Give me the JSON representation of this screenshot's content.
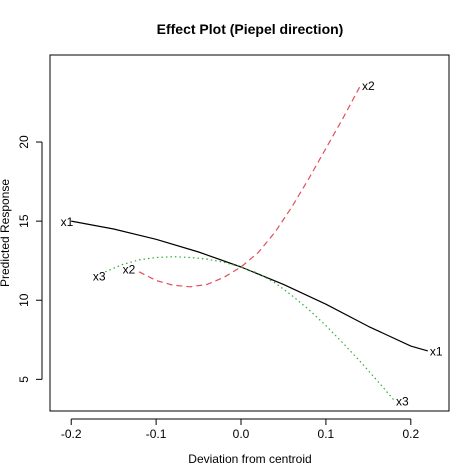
{
  "chart_data": {
    "type": "line",
    "title": "Effect Plot (Piepel direction)",
    "xlabel": "Deviation from centroid",
    "ylabel": "Predicted Response",
    "xlim": [
      -0.225,
      0.245
    ],
    "ylim": [
      3.0,
      25.5
    ],
    "xticks": [
      -0.2,
      -0.1,
      0.0,
      0.1,
      0.2
    ],
    "xtick_labels": [
      "-0.2",
      "-0.1",
      "0.0",
      "0.1",
      "0.2"
    ],
    "yticks": [
      5,
      10,
      15,
      20
    ],
    "ytick_labels": [
      "5",
      "10",
      "15",
      "20"
    ],
    "grid": false,
    "legend": "none",
    "series": [
      {
        "name": "x1",
        "color": "#000000",
        "dash": "solid",
        "x": [
          -0.2,
          -0.15,
          -0.1,
          -0.05,
          0.0,
          0.05,
          0.1,
          0.15,
          0.2,
          0.22
        ],
        "y": [
          15.0,
          14.5,
          13.85,
          13.05,
          12.1,
          11.0,
          9.75,
          8.35,
          7.1,
          6.8
        ]
      },
      {
        "name": "x2",
        "color": "#e0505a",
        "dash": "dashed",
        "x": [
          -0.12,
          -0.1,
          -0.08,
          -0.06,
          -0.04,
          -0.02,
          0.0,
          0.02,
          0.04,
          0.06,
          0.08,
          0.1,
          0.12,
          0.14
        ],
        "y": [
          11.8,
          11.25,
          10.95,
          10.85,
          11.0,
          11.45,
          12.1,
          13.0,
          14.3,
          15.9,
          17.7,
          19.6,
          21.5,
          23.5
        ]
      },
      {
        "name": "x3",
        "color": "#33aa33",
        "dash": "dotted",
        "x": [
          -0.16,
          -0.14,
          -0.12,
          -0.1,
          -0.08,
          -0.06,
          -0.04,
          -0.02,
          0.0,
          0.02,
          0.04,
          0.06,
          0.08,
          0.1,
          0.12,
          0.14,
          0.16,
          0.18
        ],
        "y": [
          11.8,
          12.25,
          12.55,
          12.7,
          12.75,
          12.7,
          12.6,
          12.4,
          12.1,
          11.7,
          11.1,
          10.3,
          9.4,
          8.4,
          7.3,
          6.15,
          4.95,
          3.7
        ]
      }
    ],
    "annotations": [
      {
        "text": "x1",
        "x": -0.205,
        "y": 14.95
      },
      {
        "text": "x1",
        "x": 0.23,
        "y": 6.75
      },
      {
        "text": "x2",
        "x": -0.132,
        "y": 11.95
      },
      {
        "text": "x2",
        "x": 0.15,
        "y": 23.55
      },
      {
        "text": "x3",
        "x": -0.167,
        "y": 11.5
      },
      {
        "text": "x3",
        "x": 0.19,
        "y": 3.6
      }
    ]
  }
}
